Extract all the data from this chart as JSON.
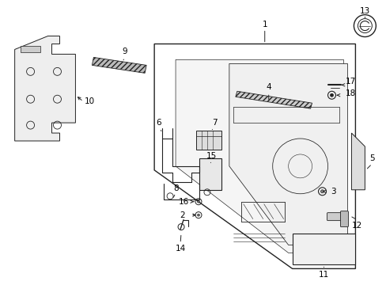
{
  "bg_color": "#ffffff",
  "line_color": "#222222",
  "label_color": "#000000",
  "fig_w": 4.89,
  "fig_h": 3.6,
  "dpi": 100
}
